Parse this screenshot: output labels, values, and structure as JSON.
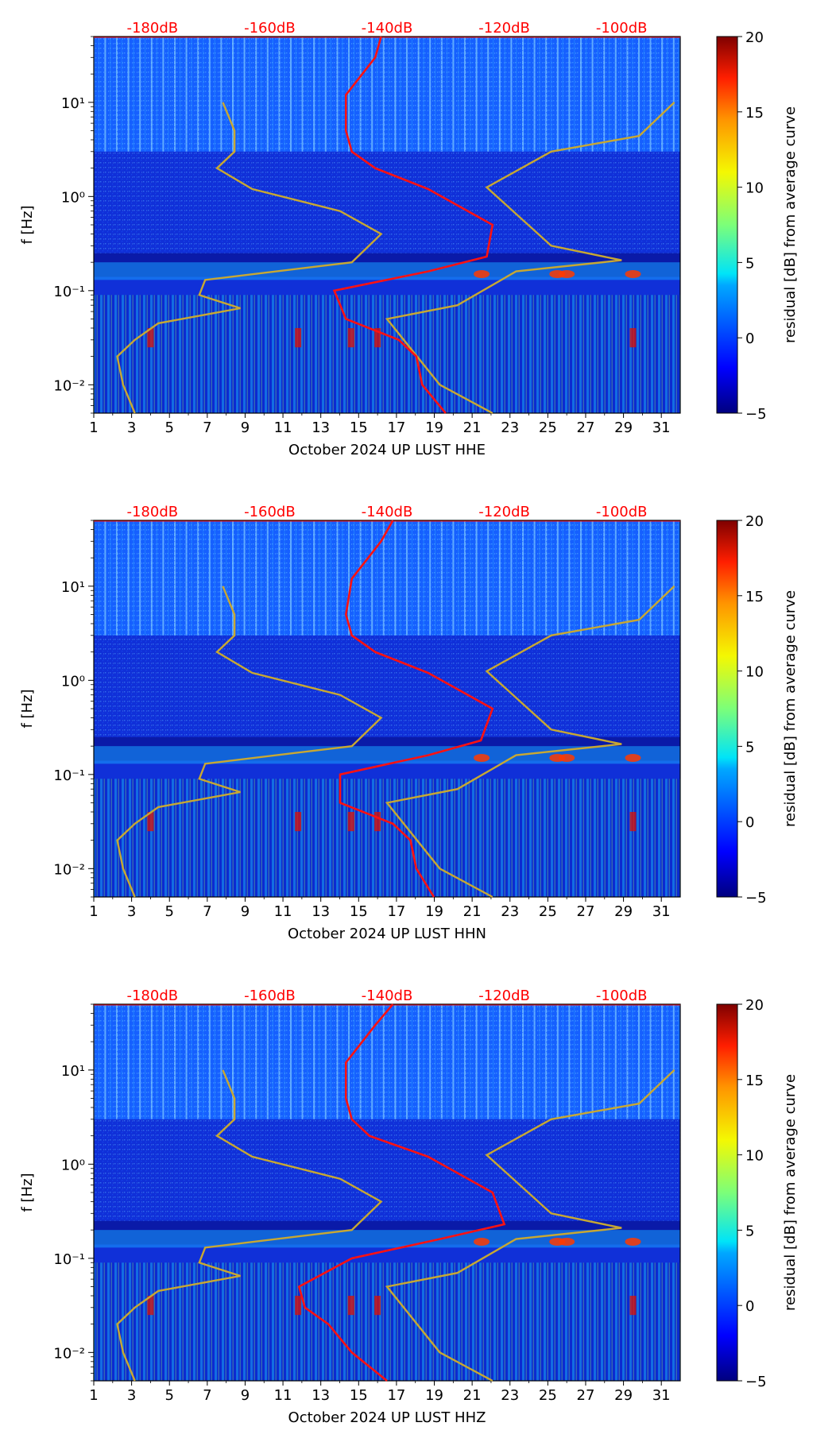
{
  "colors": {
    "background": "#ffffff",
    "noise_model_lines": "#c8a832",
    "psd_curve": "#ff1111",
    "top_scale_labels": "#ff0000",
    "axis": "#000000"
  },
  "colorbar": {
    "label": "residual [dB] from average curve",
    "ticks": [
      "20",
      "15",
      "10",
      "5",
      "0",
      "−5"
    ],
    "range": [
      -5,
      20
    ],
    "colormap": "jet"
  },
  "chart_data": [
    {
      "type": "heatmap",
      "xlabel": "October 2024 UP LUST  HHE",
      "ylabel": "f [Hz]",
      "x_ticks": [
        "1",
        "3",
        "5",
        "7",
        "9",
        "11",
        "13",
        "15",
        "17",
        "19",
        "21",
        "23",
        "25",
        "27",
        "29",
        "31"
      ],
      "y_ticks": [
        "10¹",
        "10⁰",
        "10⁻¹",
        "10⁻²"
      ],
      "y_scale": "log",
      "ylim": [
        0.005,
        50
      ],
      "xlim": [
        1,
        32
      ],
      "top_scale_labels": [
        "-180dB",
        "-160dB",
        "-140dB",
        "-120dB",
        "-100dB"
      ],
      "top_scale_values": [
        -180,
        -160,
        -140,
        -120,
        -100
      ],
      "psd_curve": {
        "dB": [
          -141,
          -142,
          -147,
          -147,
          -146,
          -142,
          -133,
          -122,
          -123,
          -133,
          -149,
          -147,
          -138,
          -135,
          -134,
          -130
        ],
        "f": [
          50,
          30,
          12,
          5,
          3,
          2,
          1.2,
          0.5,
          0.23,
          0.16,
          0.1,
          0.05,
          0.03,
          0.02,
          0.01,
          0.005
        ]
      },
      "colorbar": {
        "label": "residual [dB] from average curve",
        "range": [
          -5,
          20
        ]
      }
    },
    {
      "type": "heatmap",
      "xlabel": "October 2024 UP LUST  HHN",
      "ylabel": "f [Hz]",
      "x_ticks": [
        "1",
        "3",
        "5",
        "7",
        "9",
        "11",
        "13",
        "15",
        "17",
        "19",
        "21",
        "23",
        "25",
        "27",
        "29",
        "31"
      ],
      "y_ticks": [
        "10¹",
        "10⁰",
        "10⁻¹",
        "10⁻²"
      ],
      "y_scale": "log",
      "ylim": [
        0.005,
        50
      ],
      "xlim": [
        1,
        32
      ],
      "top_scale_labels": [
        "-180dB",
        "-160dB",
        "-140dB",
        "-120dB",
        "-100dB"
      ],
      "top_scale_values": [
        -180,
        -160,
        -140,
        -120,
        -100
      ],
      "psd_curve": {
        "dB": [
          -139,
          -141,
          -146,
          -147,
          -146,
          -142,
          -133,
          -122,
          -124,
          -133,
          -148,
          -148,
          -139,
          -136,
          -135,
          -132
        ],
        "f": [
          50,
          30,
          12,
          5,
          3,
          2,
          1.2,
          0.5,
          0.23,
          0.16,
          0.1,
          0.05,
          0.03,
          0.02,
          0.01,
          0.005
        ]
      },
      "colorbar": {
        "label": "residual [dB] from average curve",
        "range": [
          -5,
          20
        ]
      }
    },
    {
      "type": "heatmap",
      "xlabel": "October 2024 UP LUST  HHZ",
      "ylabel": "f [Hz]",
      "x_ticks": [
        "1",
        "3",
        "5",
        "7",
        "9",
        "11",
        "13",
        "15",
        "17",
        "19",
        "21",
        "23",
        "25",
        "27",
        "29",
        "31"
      ],
      "y_ticks": [
        "10¹",
        "10⁰",
        "10⁻¹",
        "10⁻²"
      ],
      "y_scale": "log",
      "ylim": [
        0.005,
        50
      ],
      "xlim": [
        1,
        32
      ],
      "top_scale_labels": [
        "-180dB",
        "-160dB",
        "-140dB",
        "-120dB",
        "-100dB"
      ],
      "top_scale_values": [
        -180,
        -160,
        -140,
        -120,
        -100
      ],
      "psd_curve": {
        "dB": [
          -139,
          -142,
          -147,
          -147,
          -146,
          -143,
          -133,
          -122,
          -120,
          -131,
          -146,
          -155,
          -154,
          -150,
          -146,
          -140
        ],
        "f": [
          50,
          30,
          12,
          5,
          3,
          2,
          1.2,
          0.5,
          0.23,
          0.16,
          0.1,
          0.05,
          0.03,
          0.02,
          0.01,
          0.005
        ]
      },
      "colorbar": {
        "label": "residual [dB] from average curve",
        "range": [
          -5,
          20
        ]
      }
    }
  ],
  "noise_models": {
    "low": {
      "dB": [
        -168,
        -166,
        -166,
        -169,
        -163,
        -148,
        -141,
        -146,
        -171,
        -172,
        -165,
        -179,
        -183,
        -186,
        -185,
        -183
      ],
      "f": [
        10,
        5,
        3,
        2,
        1.2,
        0.7,
        0.4,
        0.2,
        0.13,
        0.09,
        0.065,
        0.045,
        0.03,
        0.02,
        0.01,
        0.005
      ]
    },
    "high": {
      "dB": [
        -91,
        -97,
        -112,
        -123,
        -112,
        -100,
        -118,
        -128,
        -140,
        -131,
        -122
      ],
      "f": [
        10,
        4.4,
        3,
        1.25,
        0.3,
        0.21,
        0.16,
        0.07,
        0.05,
        0.01,
        0.005
      ]
    }
  }
}
